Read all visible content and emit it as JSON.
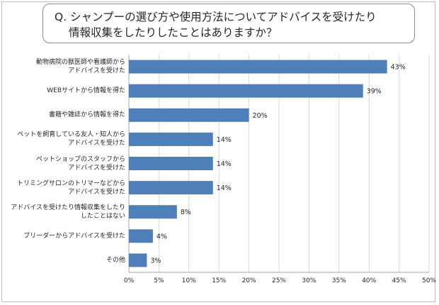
{
  "question": {
    "line1": "Q. シャンプーの選び方や使用方法についてアドバイスを受けたり",
    "line2": "情報収集をしたりしたことはありますか？"
  },
  "chart_data": {
    "type": "bar",
    "orientation": "horizontal",
    "categories": [
      [
        "動物病院の獣医師や看護師から",
        "アドバイスを受けた"
      ],
      [
        "WEBサイトから情報を得た"
      ],
      [
        "書籍や雑誌から情報を得た"
      ],
      [
        "ペットを飼育している友人・知人から",
        "アドバイスを受けた"
      ],
      [
        "ペットショップのスタッフから",
        "アドバイスを受けた"
      ],
      [
        "トリミングサロンのトリマーなどから",
        "アドバイスを受けた"
      ],
      [
        "アドバイスを受けたり情報収集をしたり",
        "したことはない"
      ],
      [
        "ブリーダーからアドバイスを受けた"
      ],
      [
        "その他"
      ]
    ],
    "values": [
      43,
      39,
      20,
      14,
      14,
      14,
      8,
      4,
      3
    ],
    "value_labels": [
      "43%",
      "39%",
      "20%",
      "14%",
      "14%",
      "14%",
      "8%",
      "4%",
      "3%"
    ],
    "xlim": [
      0,
      50
    ],
    "xticks": [
      "0%",
      "5%",
      "10%",
      "15%",
      "20%",
      "25%",
      "30%",
      "35%",
      "40%",
      "45%",
      "50%"
    ],
    "grid": true,
    "bar_color": "#4f7fb9",
    "grid_color": "#d9d9d9",
    "axis_color": "#a6a6a6"
  }
}
